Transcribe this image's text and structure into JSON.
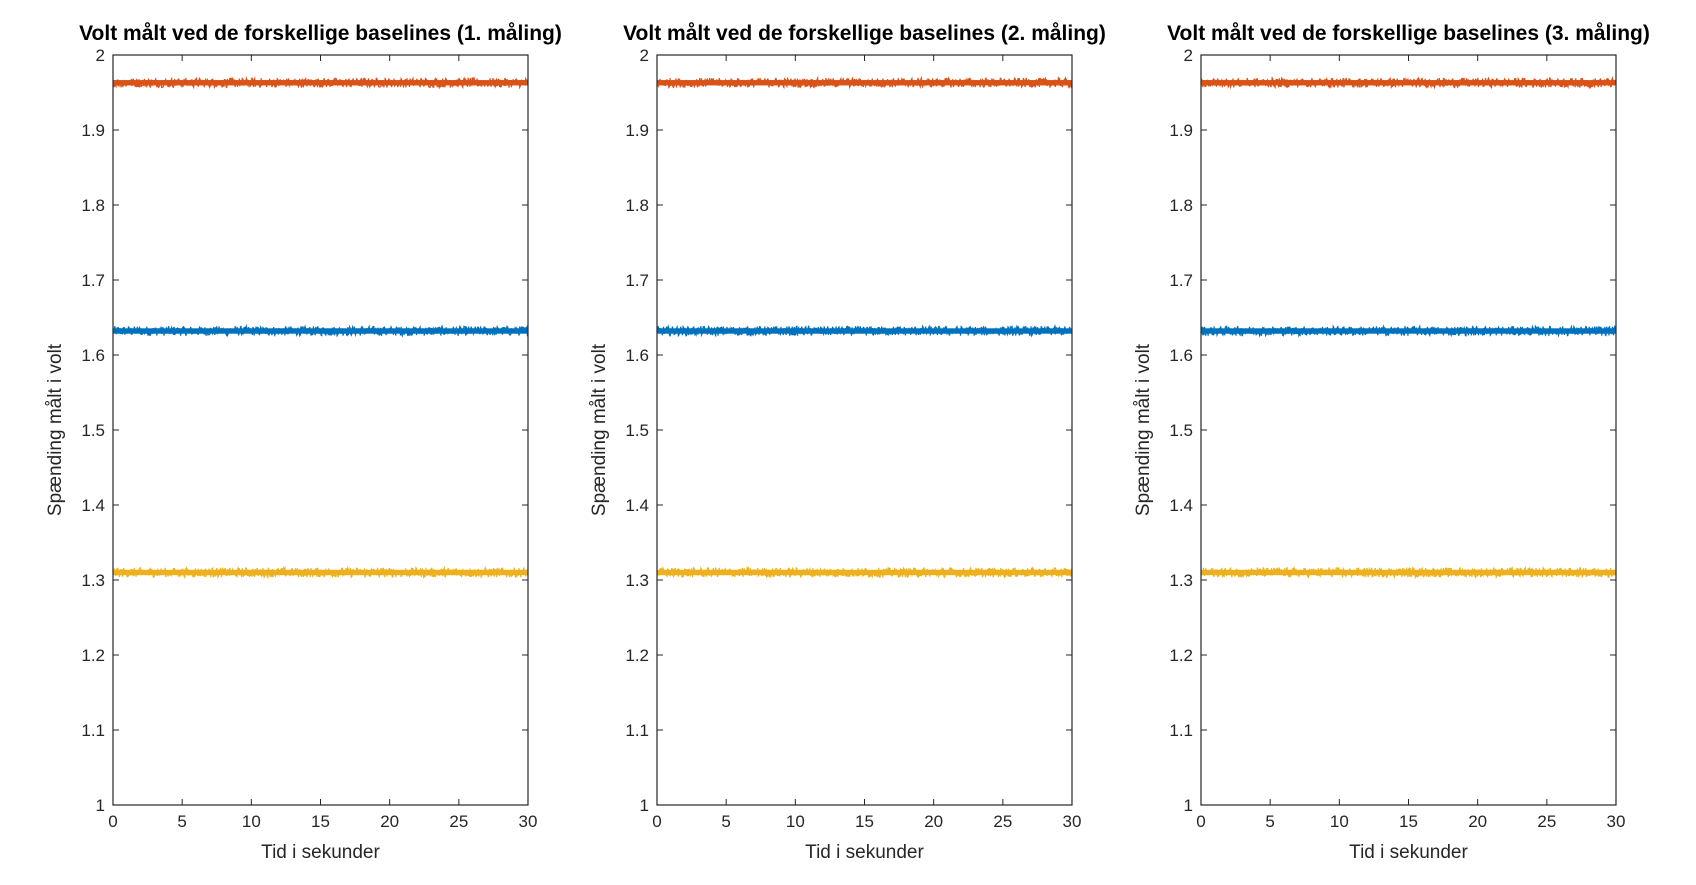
{
  "chart_data": [
    {
      "type": "line",
      "title": "Volt målt ved de forskellige baselines (1. måling)",
      "xlabel": "Tid i sekunder",
      "ylabel": "Spænding målt i volt",
      "xlim": [
        0,
        30
      ],
      "ylim": [
        1,
        2
      ],
      "xticks": [
        "0",
        "5",
        "10",
        "15",
        "20",
        "25",
        "30"
      ],
      "yticks": [
        "1",
        "1.1",
        "1.2",
        "1.3",
        "1.4",
        "1.5",
        "1.6",
        "1.7",
        "1.8",
        "1.9",
        "2"
      ],
      "grid": false,
      "series": [
        {
          "color": "#0072bd",
          "x": [
            0,
            30
          ],
          "y": [
            1.632,
            1.632
          ],
          "noise": 0.008
        },
        {
          "color": "#d95319",
          "x": [
            0,
            30
          ],
          "y": [
            1.963,
            1.963
          ],
          "noise": 0.008
        },
        {
          "color": "#edb120",
          "x": [
            0,
            30
          ],
          "y": [
            1.31,
            1.31
          ],
          "noise": 0.008
        }
      ]
    },
    {
      "type": "line",
      "title": "Volt målt ved de forskellige baselines (2. måling)",
      "xlabel": "Tid i sekunder",
      "ylabel": "Spænding målt i volt",
      "xlim": [
        0,
        30
      ],
      "ylim": [
        1,
        2
      ],
      "xticks": [
        "0",
        "5",
        "10",
        "15",
        "20",
        "25",
        "30"
      ],
      "yticks": [
        "1",
        "1.1",
        "1.2",
        "1.3",
        "1.4",
        "1.5",
        "1.6",
        "1.7",
        "1.8",
        "1.9",
        "2"
      ],
      "grid": false,
      "series": [
        {
          "color": "#0072bd",
          "x": [
            0,
            30
          ],
          "y": [
            1.632,
            1.632
          ],
          "noise": 0.008
        },
        {
          "color": "#d95319",
          "x": [
            0,
            30
          ],
          "y": [
            1.963,
            1.963
          ],
          "noise": 0.008
        },
        {
          "color": "#edb120",
          "x": [
            0,
            30
          ],
          "y": [
            1.31,
            1.31
          ],
          "noise": 0.008
        }
      ]
    },
    {
      "type": "line",
      "title": "Volt målt ved de forskellige baselines (3. måling)",
      "xlabel": "Tid i sekunder",
      "ylabel": "Spænding målt i volt",
      "xlim": [
        0,
        30
      ],
      "ylim": [
        1,
        2
      ],
      "xticks": [
        "0",
        "5",
        "10",
        "15",
        "20",
        "25",
        "30"
      ],
      "yticks": [
        "1",
        "1.1",
        "1.2",
        "1.3",
        "1.4",
        "1.5",
        "1.6",
        "1.7",
        "1.8",
        "1.9",
        "2"
      ],
      "grid": false,
      "series": [
        {
          "color": "#0072bd",
          "x": [
            0,
            30
          ],
          "y": [
            1.632,
            1.632
          ],
          "noise": 0.008
        },
        {
          "color": "#d95319",
          "x": [
            0,
            30
          ],
          "y": [
            1.963,
            1.963
          ],
          "noise": 0.008
        },
        {
          "color": "#edb120",
          "x": [
            0,
            30
          ],
          "y": [
            1.31,
            1.31
          ],
          "noise": 0.008
        }
      ]
    }
  ]
}
